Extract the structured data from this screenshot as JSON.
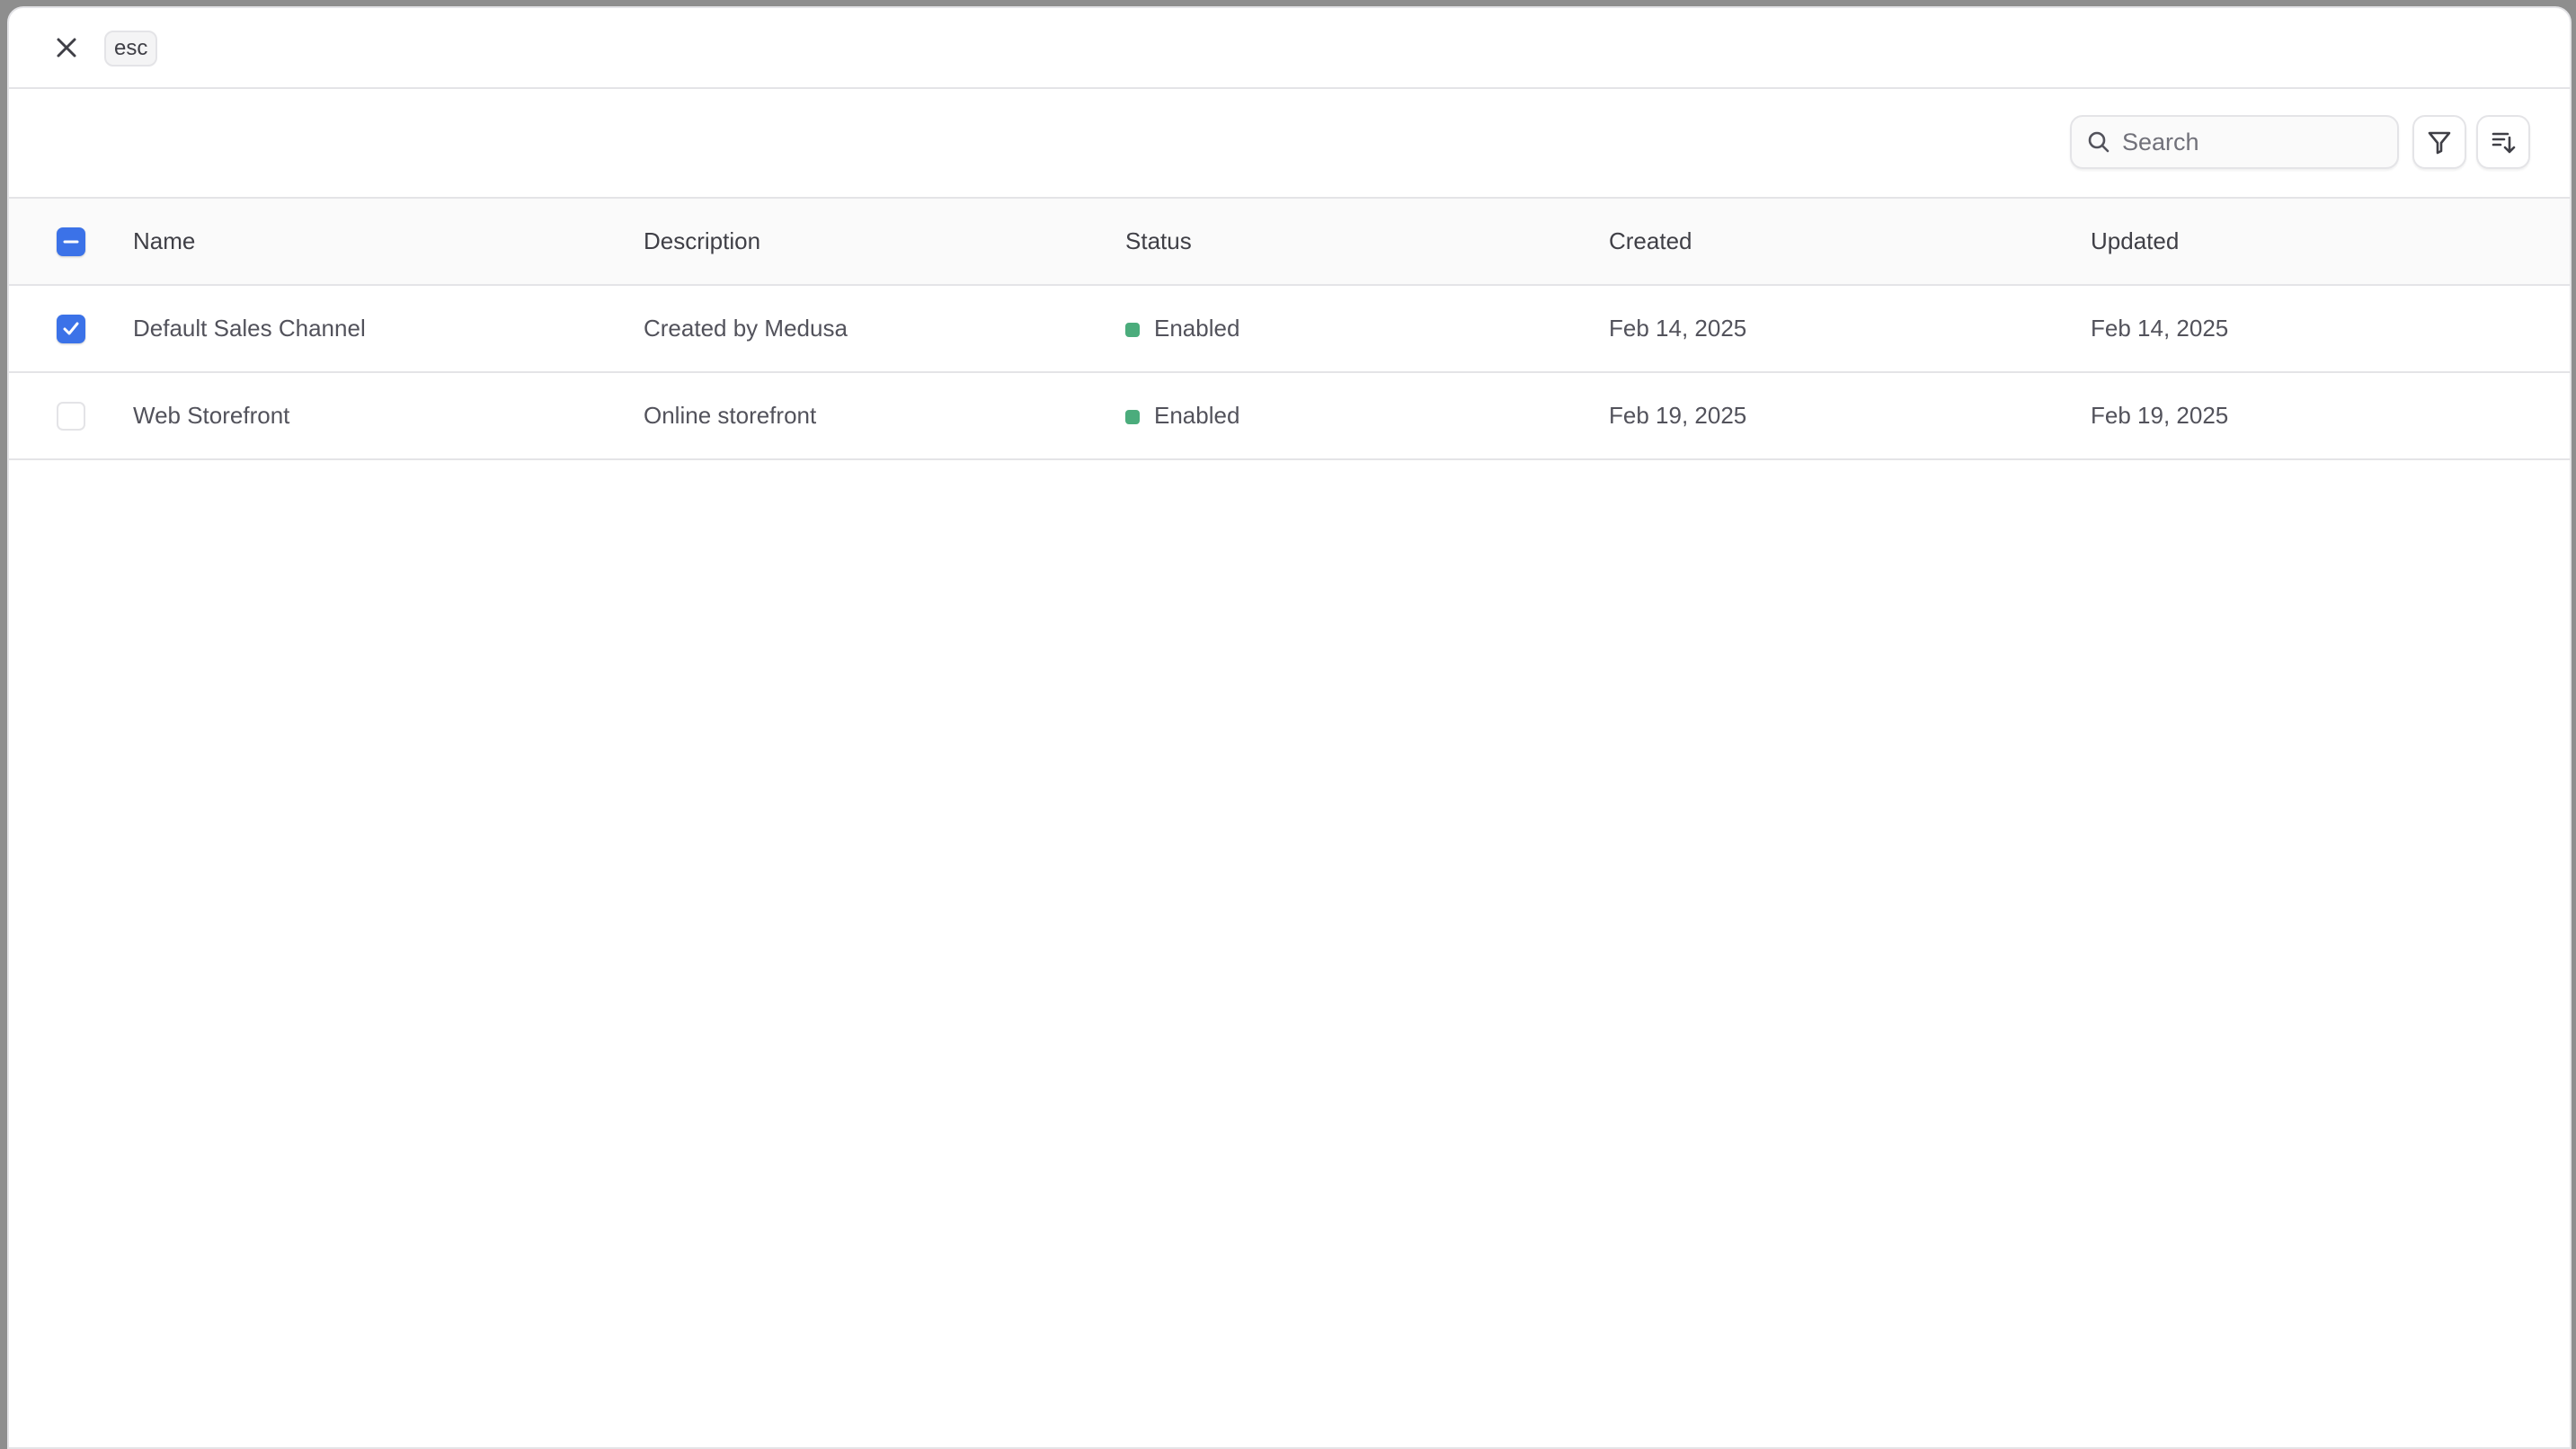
{
  "header": {
    "close_icon": "close-icon",
    "esc_label": "esc"
  },
  "toolbar": {
    "search_placeholder": "Search",
    "search_value": "",
    "filter_icon": "filter-icon",
    "sort_icon": "sort-descending-icon"
  },
  "table": {
    "columns": [
      "Name",
      "Description",
      "Status",
      "Created",
      "Updated"
    ],
    "select_all_state": "indeterminate",
    "rows": [
      {
        "selected": true,
        "name": "Default Sales Channel",
        "description": "Created by Medusa",
        "status": "Enabled",
        "created": "Feb 14, 2025",
        "updated": "Feb 14, 2025"
      },
      {
        "selected": false,
        "name": "Web Storefront",
        "description": "Online storefront",
        "status": "Enabled",
        "created": "Feb 19, 2025",
        "updated": "Feb 19, 2025"
      }
    ]
  },
  "colors": {
    "accent": "#3b72e8",
    "status_enabled": "#4bac7c"
  }
}
